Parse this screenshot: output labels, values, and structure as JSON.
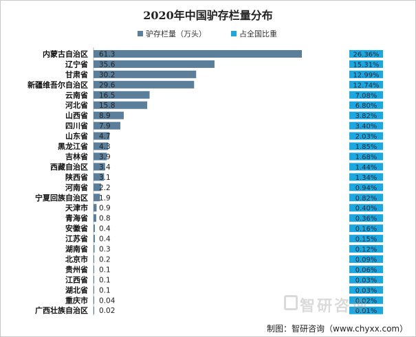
{
  "chart_data": {
    "type": "bar",
    "orientation": "horizontal",
    "title": "2020年中国驴存栏量分布",
    "categories": [
      "内蒙古自治区",
      "辽宁省",
      "甘肃省",
      "新疆维吾尔自治区",
      "云南省",
      "河北省",
      "山西省",
      "四川省",
      "山东省",
      "黑龙江省",
      "吉林省",
      "西藏自治区",
      "陕西省",
      "河南省",
      "宁夏回族自治区",
      "天津市",
      "青海省",
      "安徽省",
      "江苏省",
      "湖南省",
      "北京市",
      "贵州省",
      "江西省",
      "湖北省",
      "重庆市",
      "广西壮族自治区"
    ],
    "series": [
      {
        "name": "驴存栏量（万头）",
        "color": "#5b7f9a",
        "values": [
          61.3,
          35.6,
          30.2,
          29.6,
          16.5,
          15.8,
          8.9,
          7.9,
          4.7,
          4.3,
          3.9,
          3.4,
          3.1,
          2.2,
          1.9,
          0.9,
          0.8,
          0.4,
          0.4,
          0.3,
          0.2,
          0.1,
          0.1,
          0.1,
          0.04,
          0.02
        ],
        "value_labels": [
          "61.3",
          "35.6",
          "30.2",
          "29.6",
          "16.5",
          "15.8",
          "8.9",
          "7.9",
          "4.7",
          "4.3",
          "3.9",
          "3.4",
          "3.1",
          "2.2",
          "1.9",
          "0.9",
          "0.8",
          "0.4",
          "0.4",
          "0.3",
          "0.2",
          "0.1",
          "0.1",
          "0.1",
          "0.04",
          "0.02"
        ]
      },
      {
        "name": "占全国比重",
        "color": "#1ba8e0",
        "labels": [
          "26.36%",
          "15.31%",
          "12.99%",
          "12.74%",
          "7.08%",
          "6.80%",
          "3.82%",
          "3.40%",
          "2.03%",
          "1.85%",
          "1.68%",
          "1.44%",
          "1.34%",
          "0.94%",
          "0.82%",
          "0.40%",
          "0.36%",
          "0.16%",
          "0.15%",
          "0.12%",
          "0.09%",
          "0.06%",
          "0.03%",
          "0.03%",
          "0.02%",
          "0.01%"
        ]
      }
    ],
    "legend_position": "top",
    "grid": false
  },
  "watermark": {
    "text": "智研咨询"
  },
  "source": {
    "text": "制图：智研咨询（www.chyxx.com）"
  }
}
